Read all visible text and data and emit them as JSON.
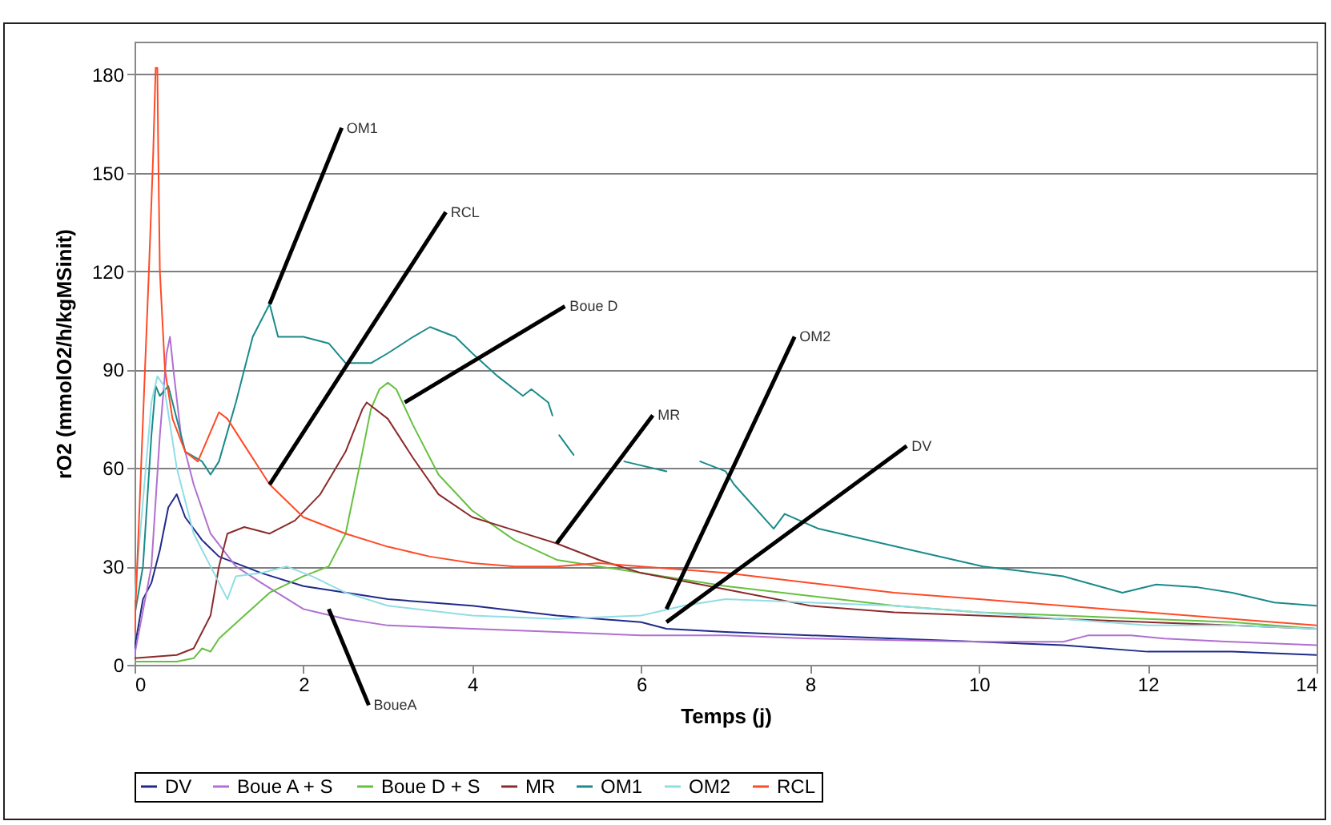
{
  "chart_data": {
    "type": "line",
    "xlabel": "Temps (j)",
    "ylabel": "rO2 (mmolO2/h/kgMSinit)",
    "xlim": [
      0,
      14
    ],
    "ylim": [
      0,
      190
    ],
    "xticks": [
      0,
      2,
      4,
      6,
      8,
      10,
      12,
      14
    ],
    "yticks": [
      0,
      30,
      60,
      90,
      120,
      150,
      180
    ],
    "grid": "y",
    "legend": "bottom",
    "line_style": "solid",
    "marker": "none",
    "annotations": [
      {
        "text": "OM1",
        "x": 1.6,
        "y": 110
      },
      {
        "text": "RCL",
        "x": 1.6,
        "y": 55
      },
      {
        "text": "Boue D",
        "x": 3.2,
        "y": 80
      },
      {
        "text": "MR",
        "x": 5,
        "y": 37
      },
      {
        "text": "OM2",
        "x": 6.3,
        "y": 17
      },
      {
        "text": "DV",
        "x": 6.3,
        "y": 13
      },
      {
        "text": "BoueA",
        "x": 2.3,
        "y": 17
      }
    ],
    "series": [
      {
        "name": "DV",
        "color": "#1f2a8a",
        "x": [
          0,
          0.1,
          0.2,
          0.3,
          0.4,
          0.5,
          0.6,
          0.8,
          1,
          1.5,
          2,
          3,
          4,
          5,
          6,
          6.3,
          7,
          8,
          9,
          10,
          11,
          12,
          13,
          14
        ],
        "values": [
          5,
          20,
          25,
          35,
          48,
          52,
          45,
          38,
          33,
          28,
          24,
          20,
          18,
          15,
          13,
          11,
          10,
          9,
          8,
          7,
          6,
          4,
          4,
          3
        ]
      },
      {
        "name": "Boue A + S",
        "color": "#b070d0",
        "x": [
          0,
          0.2,
          0.3,
          0.38,
          0.42,
          0.46,
          0.55,
          0.7,
          0.9,
          1.2,
          1.5,
          2,
          2.5,
          3,
          4,
          5,
          6,
          7,
          8,
          9,
          10,
          11,
          11.3,
          11.8,
          12.2,
          13,
          14
        ],
        "values": [
          3,
          30,
          70,
          95,
          100,
          90,
          70,
          55,
          40,
          30,
          25,
          17,
          14,
          12,
          11,
          10,
          9,
          9,
          8,
          7.5,
          7,
          7,
          9,
          9,
          8,
          7,
          6
        ]
      },
      {
        "name": "Boue D + S",
        "color": "#66c040",
        "x": [
          0,
          0.5,
          0.7,
          0.8,
          0.9,
          1,
          1.3,
          1.6,
          2,
          2.3,
          2.5,
          2.7,
          2.8,
          2.9,
          3,
          3.1,
          3.3,
          3.6,
          4,
          4.5,
          5,
          5.5,
          6,
          7,
          8,
          9,
          10,
          11,
          12,
          13,
          14
        ],
        "values": [
          1,
          1,
          2,
          5,
          4,
          8,
          15,
          22,
          27,
          30,
          40,
          65,
          78,
          84,
          86,
          84,
          73,
          58,
          47,
          38,
          32,
          30,
          28,
          24,
          21,
          18,
          16,
          15,
          14,
          13,
          11
        ]
      },
      {
        "name": "MR",
        "color": "#8b2a2a",
        "x": [
          0,
          0.5,
          0.7,
          0.9,
          1,
          1.1,
          1.3,
          1.6,
          1.9,
          2.2,
          2.5,
          2.7,
          2.75,
          3,
          3.3,
          3.6,
          4,
          4.5,
          5,
          5.5,
          6,
          7,
          8,
          9,
          10,
          11,
          12,
          13,
          14
        ],
        "values": [
          2,
          3,
          5,
          15,
          30,
          40,
          42,
          40,
          44,
          52,
          65,
          78,
          80,
          75,
          63,
          52,
          45,
          41,
          37,
          32,
          28,
          23,
          18,
          16,
          15,
          14,
          13,
          12,
          11
        ]
      },
      {
        "name": "OM1",
        "color": "#1a8a8a",
        "x": [
          0,
          0.1,
          0.15,
          0.2,
          0.25,
          0.3,
          0.4,
          0.5,
          0.6,
          0.8,
          0.9,
          1,
          1.2,
          1.4,
          1.6,
          1.7,
          2,
          2.3,
          2.5,
          2.8,
          3,
          3.3,
          3.5,
          3.8,
          4,
          4.3,
          4.6,
          4.7,
          4.9,
          4.95,
          5.0,
          5.03,
          5.2,
          5.5,
          5.8,
          6.3,
          6.5,
          6.7,
          7,
          7.1,
          7.57,
          7.7,
          8.1,
          9.2,
          10.05,
          11,
          11.7,
          12.1,
          12.6,
          13,
          13.5,
          14
        ],
        "values": [
          15,
          30,
          50,
          70,
          85,
          82,
          85,
          75,
          65,
          62,
          58,
          62,
          80,
          100,
          110,
          100,
          100,
          98,
          92,
          92,
          95,
          100,
          103,
          100,
          95,
          88,
          82,
          84,
          80,
          76,
          null,
          70,
          64,
          null,
          62,
          59,
          null,
          62,
          59,
          55,
          41.5,
          46,
          41.5,
          35,
          30,
          27,
          22,
          24.5,
          23.6,
          22,
          19,
          18
        ]
      },
      {
        "name": "OM2",
        "color": "#90dde6",
        "x": [
          0,
          0.1,
          0.2,
          0.27,
          0.35,
          0.5,
          0.7,
          0.9,
          1.1,
          1.2,
          1.5,
          1.8,
          2.1,
          2.5,
          3,
          4,
          5,
          6,
          6.5,
          7,
          8,
          9,
          10,
          11,
          12,
          13,
          14
        ],
        "values": [
          20,
          50,
          80,
          88,
          85,
          60,
          40,
          30,
          20,
          27,
          28,
          30,
          27,
          22,
          18,
          15,
          14,
          15,
          18,
          20,
          19,
          18,
          16,
          14,
          12,
          12,
          11
        ]
      },
      {
        "name": "RCL",
        "color": "#ff4a26",
        "x": [
          0,
          0.17,
          0.22,
          0.25,
          0.27,
          0.28,
          0.3,
          0.36,
          0.45,
          0.6,
          0.75,
          0.85,
          1,
          1.1,
          1.35,
          1.6,
          2,
          2.5,
          3,
          3.5,
          4,
          4.5,
          5,
          5.5,
          6,
          7,
          8,
          9,
          10,
          11,
          12,
          13,
          14
        ],
        "values": [
          10,
          120,
          155,
          182,
          182,
          158,
          120,
          90,
          75,
          65,
          62,
          68,
          77,
          75,
          65,
          55,
          45,
          40,
          36,
          33,
          31,
          30,
          30,
          31,
          30,
          28,
          25,
          22,
          20,
          18,
          16,
          14,
          12
        ]
      }
    ]
  }
}
